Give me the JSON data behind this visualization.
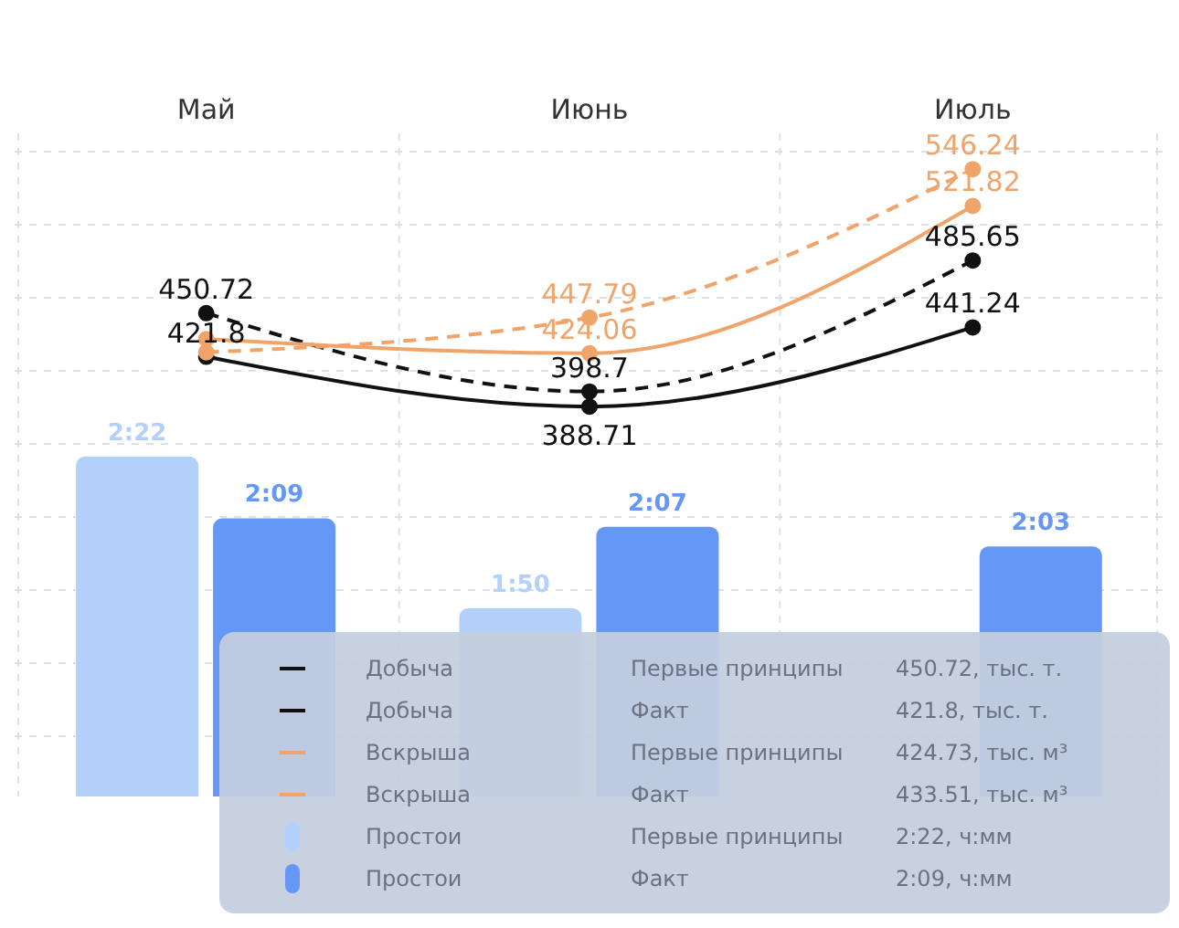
{
  "chart_data": {
    "type": "line",
    "categories": [
      "Май",
      "Июнь",
      "Июль"
    ],
    "ylim": [
      130,
      570
    ],
    "y2lim": [
      1.16,
      3.52
    ],
    "marker": "circle",
    "grid": true,
    "series": [
      {
        "color": "#111111",
        "line_style": "dashed",
        "values": [
          450.72,
          398.7,
          485.65
        ],
        "value_labels": [
          "450.72",
          "398.7",
          "485.65"
        ]
      },
      {
        "color": "#111111",
        "line_style": "solid",
        "values": [
          421.8,
          388.71,
          441.24
        ],
        "value_labels": [
          "421.8",
          "388.71",
          "441.24"
        ]
      },
      {
        "color": "#f0a46a",
        "line_style": "dashed",
        "values": [
          424.73,
          447.79,
          546.24
        ],
        "value_labels": [
          null,
          "447.79",
          "546.24"
        ]
      },
      {
        "color": "#f0a46a",
        "line_style": "solid",
        "values": [
          433.51,
          424.06,
          521.82
        ],
        "value_labels": [
          null,
          "424.06",
          "521.82"
        ]
      },
      {
        "type": "bar",
        "axis": "y2",
        "color": "#b3d0fb",
        "values": [
          2.37,
          1.83,
          null
        ],
        "value_labels": [
          "2:22",
          "1:50",
          null
        ]
      },
      {
        "type": "bar",
        "axis": "y2",
        "color": "#6497f6",
        "values": [
          2.15,
          2.12,
          2.05
        ],
        "value_labels": [
          "2:09",
          "2:07",
          "2:03"
        ]
      }
    ],
    "annotations": [
      "Добыча\tПервые принципы\t450.72, тыс. т.",
      "Добыча\tФакт\t421.8, тыс. т.",
      "Вскрыша\tПервые принципы\t424.73, тыс. м³",
      "Вскрыша\tФакт\t433.51, тыс. м³",
      "Простои\tПервые принципы\t2:22, ч:мм",
      "Простои\tФакт\t2:09, ч:мм"
    ]
  }
}
